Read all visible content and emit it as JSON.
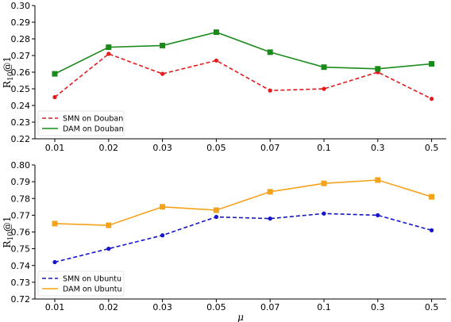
{
  "chart_data": [
    {
      "type": "line",
      "categories": [
        "0.01",
        "0.02",
        "0.03",
        "0.05",
        "0.07",
        "0.1",
        "0.3",
        "0.5"
      ],
      "ylabel": "R10@1",
      "ylim": [
        0.22,
        0.3
      ],
      "yticks": [
        "0.22",
        "0.23",
        "0.24",
        "0.25",
        "0.26",
        "0.27",
        "0.28",
        "0.29",
        "0.30"
      ],
      "legend_position": "lower-left",
      "series": [
        {
          "name": "SMN on Douban",
          "values": [
            0.245,
            0.271,
            0.259,
            0.267,
            0.249,
            0.25,
            0.26,
            0.244
          ],
          "color": "#e41a1c",
          "style": "dashed",
          "marker": "circle"
        },
        {
          "name": "DAM on Douban",
          "values": [
            0.259,
            0.275,
            0.276,
            0.284,
            0.272,
            0.263,
            0.262,
            0.265
          ],
          "color": "#1a8a1a",
          "style": "solid",
          "marker": "square"
        }
      ]
    },
    {
      "type": "line",
      "categories": [
        "0.01",
        "0.02",
        "0.03",
        "0.05",
        "0.07",
        "0.1",
        "0.3",
        "0.5"
      ],
      "xlabel": "μ",
      "ylabel": "R10@1",
      "ylim": [
        0.72,
        0.8
      ],
      "yticks": [
        "0.72",
        "0.73",
        "0.74",
        "0.75",
        "0.76",
        "0.77",
        "0.78",
        "0.79",
        "0.80"
      ],
      "legend_position": "lower-left",
      "series": [
        {
          "name": "SMN on Ubuntu",
          "values": [
            0.742,
            0.75,
            0.758,
            0.769,
            0.768,
            0.771,
            0.77,
            0.761
          ],
          "color": "#1515cc",
          "style": "dashed",
          "marker": "circle"
        },
        {
          "name": "DAM on Ubuntu",
          "values": [
            0.765,
            0.764,
            0.775,
            0.773,
            0.784,
            0.789,
            0.791,
            0.781
          ],
          "color": "#f5a21b",
          "style": "solid",
          "marker": "square"
        }
      ]
    }
  ]
}
